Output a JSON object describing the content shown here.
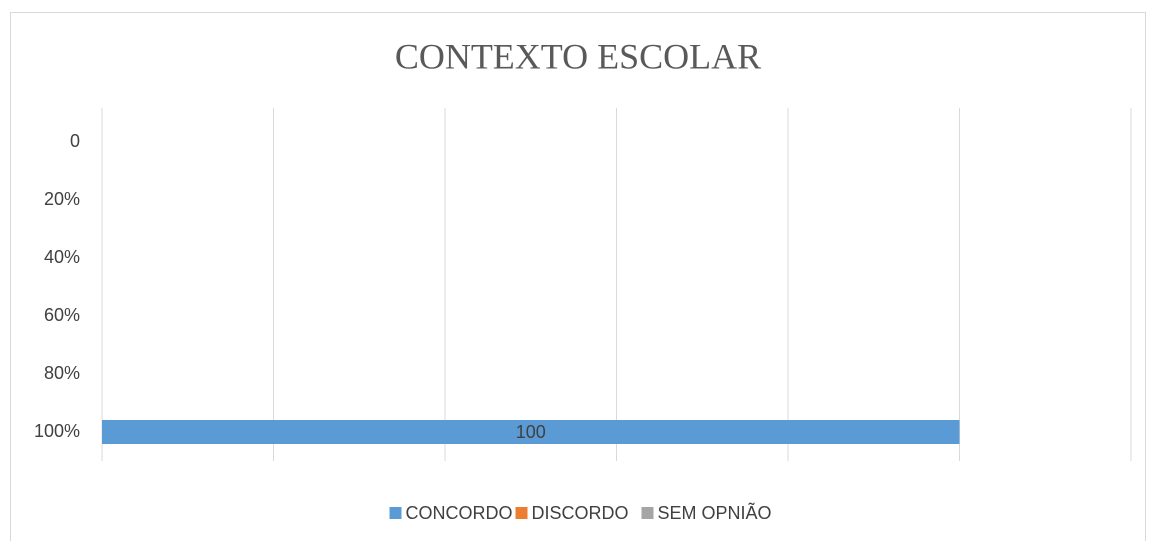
{
  "chart_data": {
    "type": "hbar",
    "title": "CONTEXTO ESCOLAR",
    "categories": [
      "0",
      "20%",
      "40%",
      "60%",
      "80%",
      "100%"
    ],
    "series": [
      {
        "name": "CONCORDO",
        "color": "#5b9bd5",
        "values": [
          null,
          null,
          null,
          null,
          null,
          100
        ]
      },
      {
        "name": "DISCORDO",
        "color": "#ed7d31",
        "values": [
          null,
          null,
          null,
          null,
          null,
          null
        ]
      },
      {
        "name": "SEM OPNIÃO",
        "color": "#a5a5a5",
        "values": [
          null,
          null,
          null,
          null,
          null,
          null
        ]
      }
    ],
    "xlim": [
      0,
      120
    ],
    "xticks": [
      0,
      20,
      40,
      60,
      80,
      100,
      120
    ],
    "grid": true,
    "legend": "bottom"
  }
}
